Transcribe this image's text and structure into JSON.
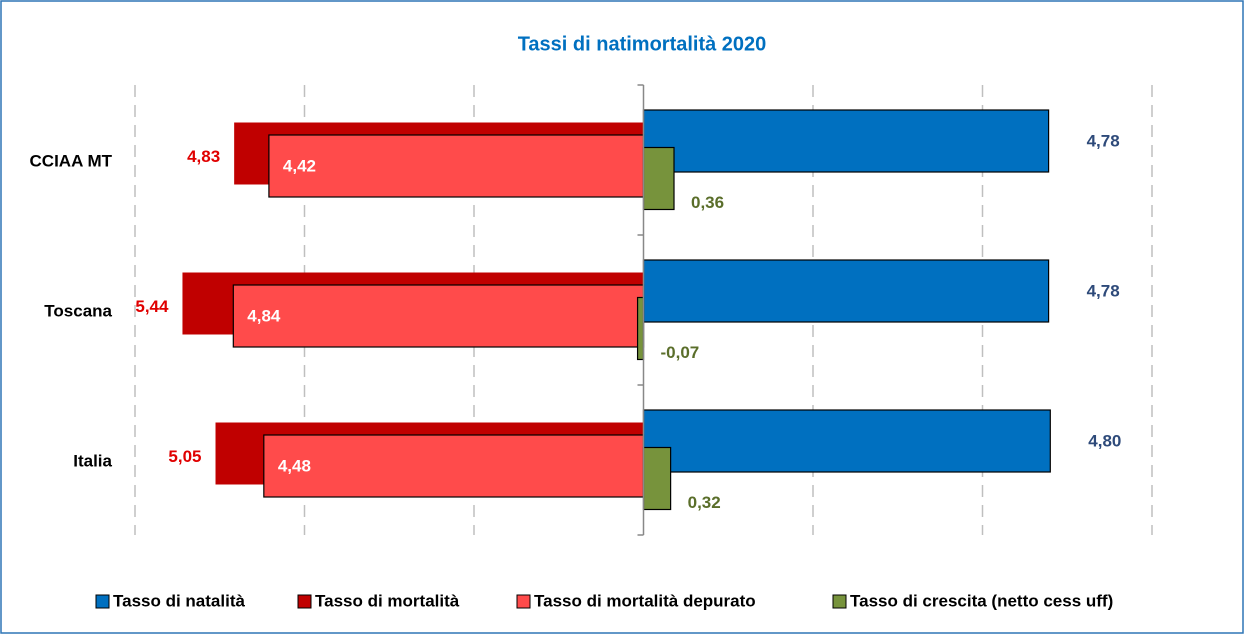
{
  "chart_data": {
    "type": "bar",
    "orientation": "horizontal",
    "title": "Tassi di natimortalità 2020",
    "categories": [
      "CCIAA MT",
      "Toscana",
      "Italia"
    ],
    "xlim": [
      -6,
      6
    ],
    "xticks": [
      -6,
      -4,
      -2,
      0,
      2,
      4,
      6
    ],
    "grid": true,
    "legend": "bottom",
    "series": [
      {
        "name": "Tasso di natalità",
        "color": "#0070c0",
        "values": [
          4.78,
          4.78,
          4.8
        ],
        "value_labels": [
          "4,78",
          "4,78",
          "4,80"
        ]
      },
      {
        "name": "Tasso di mortalità",
        "color": "#c00000",
        "values": [
          -4.83,
          -5.44,
          -5.05
        ],
        "value_labels": [
          "4,83",
          "5,44",
          "5,05"
        ]
      },
      {
        "name": "Tasso di mortalità depurato",
        "color": "#ff4b4b",
        "values": [
          -4.42,
          -4.84,
          -4.48
        ],
        "value_labels": [
          "4,42",
          "4,84",
          "4,48"
        ]
      },
      {
        "name": "Tasso di crescita (netto cess uff)",
        "color": "#77933c",
        "values": [
          0.36,
          -0.07,
          0.32
        ],
        "value_labels": [
          "0,36",
          "-0,07",
          "0,32"
        ]
      }
    ]
  }
}
